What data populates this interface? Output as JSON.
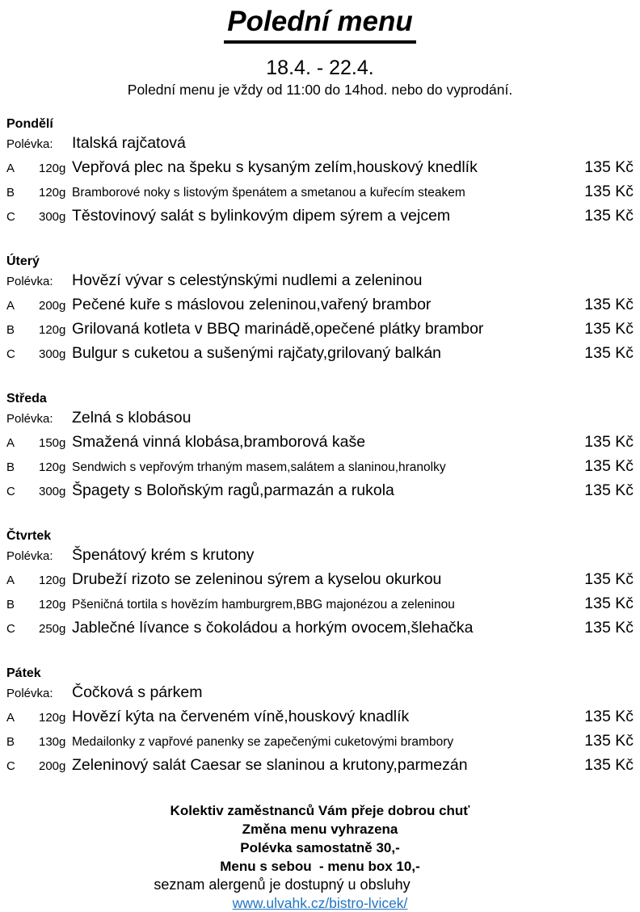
{
  "header": {
    "title": "Polední menu",
    "date_range": "18.4. - 22.4.",
    "subtitle": "Polední menu je vždy od 11:00 do 14hod. nebo do vyprodání."
  },
  "labels": {
    "soup": "Polévka:"
  },
  "days": [
    {
      "name": "Pondělí",
      "soup": "Italská rajčatová",
      "items": [
        {
          "letter": "A",
          "weight": "120g",
          "desc": "Vepřová plec na špeku s kysaným zelím,houskový knedlík",
          "price": "135 Kč",
          "small": false
        },
        {
          "letter": "B",
          "weight": "120g",
          "desc": "Bramborové noky s listovým špenátem a smetanou a kuřecím steakem",
          "price": "135 Kč",
          "small": true
        },
        {
          "letter": "C",
          "weight": "300g",
          "desc": "Těstovinový salát s bylinkovým dipem sýrem a vejcem",
          "price": "135 Kč",
          "small": false
        }
      ]
    },
    {
      "name": "Úterý",
      "soup": "Hovězí vývar s celestýnskými nudlemi a zeleninou",
      "items": [
        {
          "letter": "A",
          "weight": "200g",
          "desc": "Pečené kuře s máslovou zeleninou,vařený brambor",
          "price": "135 Kč",
          "small": false
        },
        {
          "letter": "B",
          "weight": "120g",
          "desc": "Grilovaná kotleta v BBQ marinádě,opečené plátky brambor",
          "price": "135 Kč",
          "small": false
        },
        {
          "letter": "C",
          "weight": "300g",
          "desc": "Bulgur s cuketou a sušenými rajčaty,grilovaný balkán",
          "price": "135 Kč",
          "small": false
        }
      ]
    },
    {
      "name": "Středa",
      "soup": "Zelná s klobásou",
      "items": [
        {
          "letter": "A",
          "weight": "150g",
          "desc": "Smažená vinná klobása,bramborová kaše",
          "price": "135 Kč",
          "small": false
        },
        {
          "letter": "B",
          "weight": "120g",
          "desc": "Sendwich s vepřovým trhaným masem,salátem a slaninou,hranolky",
          "price": "135 Kč",
          "small": true
        },
        {
          "letter": "C",
          "weight": "300g",
          "desc": "Špagety s Boloňským ragů,parmazán a rukola",
          "price": "135 Kč",
          "small": false
        }
      ]
    },
    {
      "name": "Čtvrtek",
      "soup": "Špenátový krém s krutony",
      "items": [
        {
          "letter": "A",
          "weight": "120g",
          "desc": "Drubeží rizoto se zeleninou sýrem a kyselou okurkou",
          "price": "135 Kč",
          "small": false
        },
        {
          "letter": "B",
          "weight": "120g",
          "desc": "Pšeničná tortila s hovězím hamburgrem,BBG majonézou a zeleninou",
          "price": "135 Kč",
          "small": true
        },
        {
          "letter": "C",
          "weight": "250g",
          "desc": "Jablečné lívance s čokoládou a horkým ovocem,šlehačka",
          "price": "135 Kč",
          "small": false
        }
      ]
    },
    {
      "name": "Pátek",
      "soup": "Čočková s párkem",
      "items": [
        {
          "letter": "A",
          "weight": "120g",
          "desc": "Hovězí kýta na červeném víně,houskový knadlík",
          "price": "135 Kč",
          "small": false
        },
        {
          "letter": "B",
          "weight": "130g",
          "desc": "Medailonky z vapřové panenky se zapečenými cuketovými brambory",
          "price": "135 Kč",
          "small": true
        },
        {
          "letter": "C",
          "weight": "200g",
          "desc": "Zeleninový salát Caesar se slaninou a krutony,parmezán",
          "price": "135 Kč",
          "small": false
        }
      ]
    }
  ],
  "footer": {
    "lines": [
      "Kolektiv zaměstnanců Vám přeje dobrou chuť",
      "Změna menu vyhrazena",
      "Polévka samostatně 30,-",
      "Menu s sebou  - menu box 10,-"
    ],
    "allergens": "seznam alergenů je dostupný u obsluhy",
    "link": "www.ulvahk.cz/bistro-lvicek/",
    "link_color": "#2175c2"
  }
}
